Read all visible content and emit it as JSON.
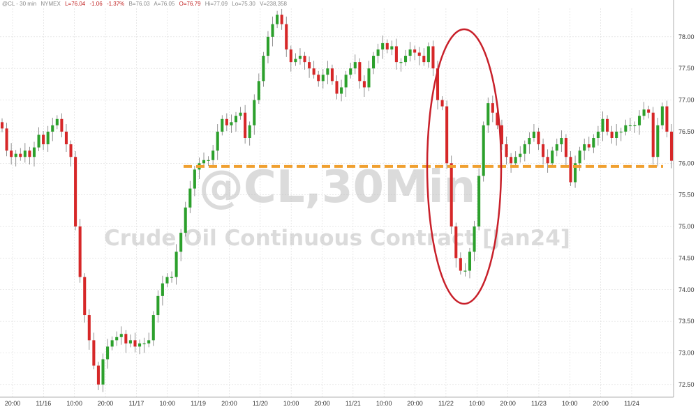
{
  "header": {
    "ticker": "@CL - 30 min",
    "exchange": "NYMEX",
    "last": "L=76.04",
    "change": "-1.06",
    "pct": "-1.37%",
    "bid": "B=76.03",
    "ask": "A=76.05",
    "open": "O=76.79",
    "high": "Hi=77.09",
    "low": "Lo=75.30",
    "volume": "V=238,358"
  },
  "watermark": {
    "symbol": "@CL,30Min",
    "name": "Crude Oil Continuous Contract [Jan24]"
  },
  "colors": {
    "up": "#2ca02c",
    "down": "#d62728",
    "support_line": "#f0a030",
    "ellipse": "#c8202a",
    "grid": "#d9d9d9"
  },
  "chart_data": {
    "type": "candlestick",
    "y_axis_side": "right",
    "ylim": [
      72.3,
      78.45
    ],
    "y_ticks": [
      "72.50",
      "73.00",
      "73.50",
      "74.00",
      "74.50",
      "75.00",
      "75.50",
      "76.00",
      "76.50",
      "77.00",
      "77.50",
      "78.00"
    ],
    "x_ticks": [
      "20:00",
      "11/16",
      "10:00",
      "20:00",
      "11/17",
      "10:00",
      "11/19",
      "20:00",
      "11/20",
      "10:00",
      "20:00",
      "11/21",
      "10:00",
      "20:00",
      "11/22",
      "10:00",
      "20:00",
      "11/23",
      "10:00",
      "20:00",
      "11/24"
    ],
    "grid": true,
    "support_level": 75.95,
    "annotation": "ellipse highlighting sharp drop and recovery on 11/22",
    "close_series": [
      76.55,
      76.2,
      76.1,
      76.15,
      76.1,
      76.2,
      76.1,
      76.25,
      76.45,
      76.3,
      76.5,
      76.6,
      76.7,
      76.5,
      76.3,
      76.1,
      75.0,
      74.2,
      73.6,
      73.2,
      72.8,
      72.5,
      72.9,
      73.1,
      73.2,
      73.25,
      73.3,
      73.15,
      73.2,
      73.1,
      73.15,
      73.15,
      73.2,
      73.6,
      73.9,
      74.1,
      74.2,
      74.2,
      74.6,
      74.9,
      75.3,
      75.6,
      75.9,
      76.0,
      76.05,
      76.05,
      76.2,
      76.5,
      76.7,
      76.6,
      76.65,
      76.75,
      76.8,
      76.4,
      76.6,
      77.0,
      77.3,
      77.7,
      78.0,
      78.2,
      78.35,
      78.2,
      77.8,
      77.6,
      77.65,
      77.7,
      77.6,
      77.5,
      77.4,
      77.3,
      77.4,
      77.5,
      77.3,
      77.1,
      77.2,
      77.4,
      77.5,
      77.6,
      77.3,
      77.2,
      77.5,
      77.7,
      77.8,
      77.9,
      77.8,
      77.85,
      77.6,
      77.6,
      77.7,
      77.8,
      77.75,
      77.7,
      77.6,
      77.85,
      77.5,
      77.0,
      76.9,
      76.0,
      75.0,
      74.5,
      74.3,
      74.3,
      74.6,
      75.0,
      75.8,
      76.6,
      76.95,
      76.8,
      76.6,
      76.3,
      76.1,
      76.0,
      76.1,
      76.15,
      76.3,
      76.4,
      76.5,
      76.3,
      76.1,
      76.0,
      76.2,
      76.3,
      76.4,
      76.1,
      75.7,
      76.0,
      76.2,
      76.3,
      76.25,
      76.4,
      76.5,
      76.7,
      76.5,
      76.4,
      76.5,
      76.5,
      76.6,
      76.6,
      76.6,
      76.75,
      76.85,
      76.8,
      76.1,
      76.6,
      76.9,
      76.5,
      76.04
    ]
  }
}
